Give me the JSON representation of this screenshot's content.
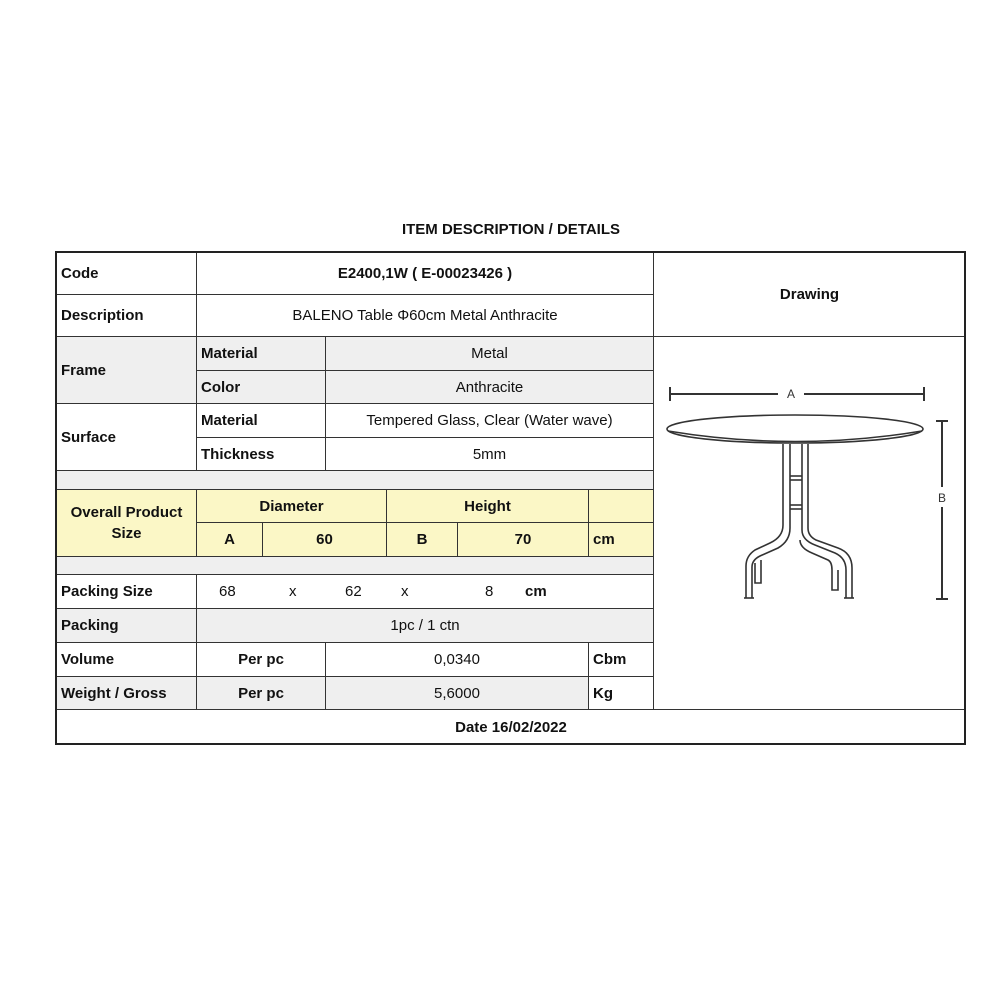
{
  "title": "ITEM DESCRIPTION / DETAILS",
  "code": {
    "label": "Code",
    "value": "E2400,1W  ( E-00023426 )"
  },
  "description": {
    "label": "Description",
    "value": "BALENO Table Φ60cm Metal Anthracite"
  },
  "drawing": {
    "label": "Drawing",
    "dim_a": "A",
    "dim_b": "B"
  },
  "frame": {
    "label": "Frame",
    "material_label": "Material",
    "material": "Metal",
    "color_label": "Color",
    "color": "Anthracite"
  },
  "surface": {
    "label": "Surface",
    "material_label": "Material",
    "material": "Tempered Glass, Clear (Water wave)",
    "thickness_label": "Thickness",
    "thickness": "5mm"
  },
  "size": {
    "label": "Overall Product Size",
    "diameter_label": "Diameter",
    "height_label": "Height",
    "a": "A",
    "a_value": "60",
    "b": "B",
    "b_value": "70",
    "unit": "cm"
  },
  "packing_size": {
    "label": "Packing Size",
    "l": "68",
    "x1": "x",
    "w": "62",
    "x2": "x",
    "h": "8",
    "unit": "cm"
  },
  "packing": {
    "label": "Packing",
    "value": "1pc / 1 ctn"
  },
  "volume": {
    "label": "Volume",
    "per": "Per pc",
    "value": "0,0340",
    "unit": "Cbm"
  },
  "weight": {
    "label": "Weight / Gross",
    "per": "Per pc",
    "value": "5,6000",
    "unit": "Kg"
  },
  "date": "Date 16/02/2022",
  "colors": {
    "highlight": "#fbf7c6",
    "shade": "#efefef",
    "border": "#333333"
  }
}
